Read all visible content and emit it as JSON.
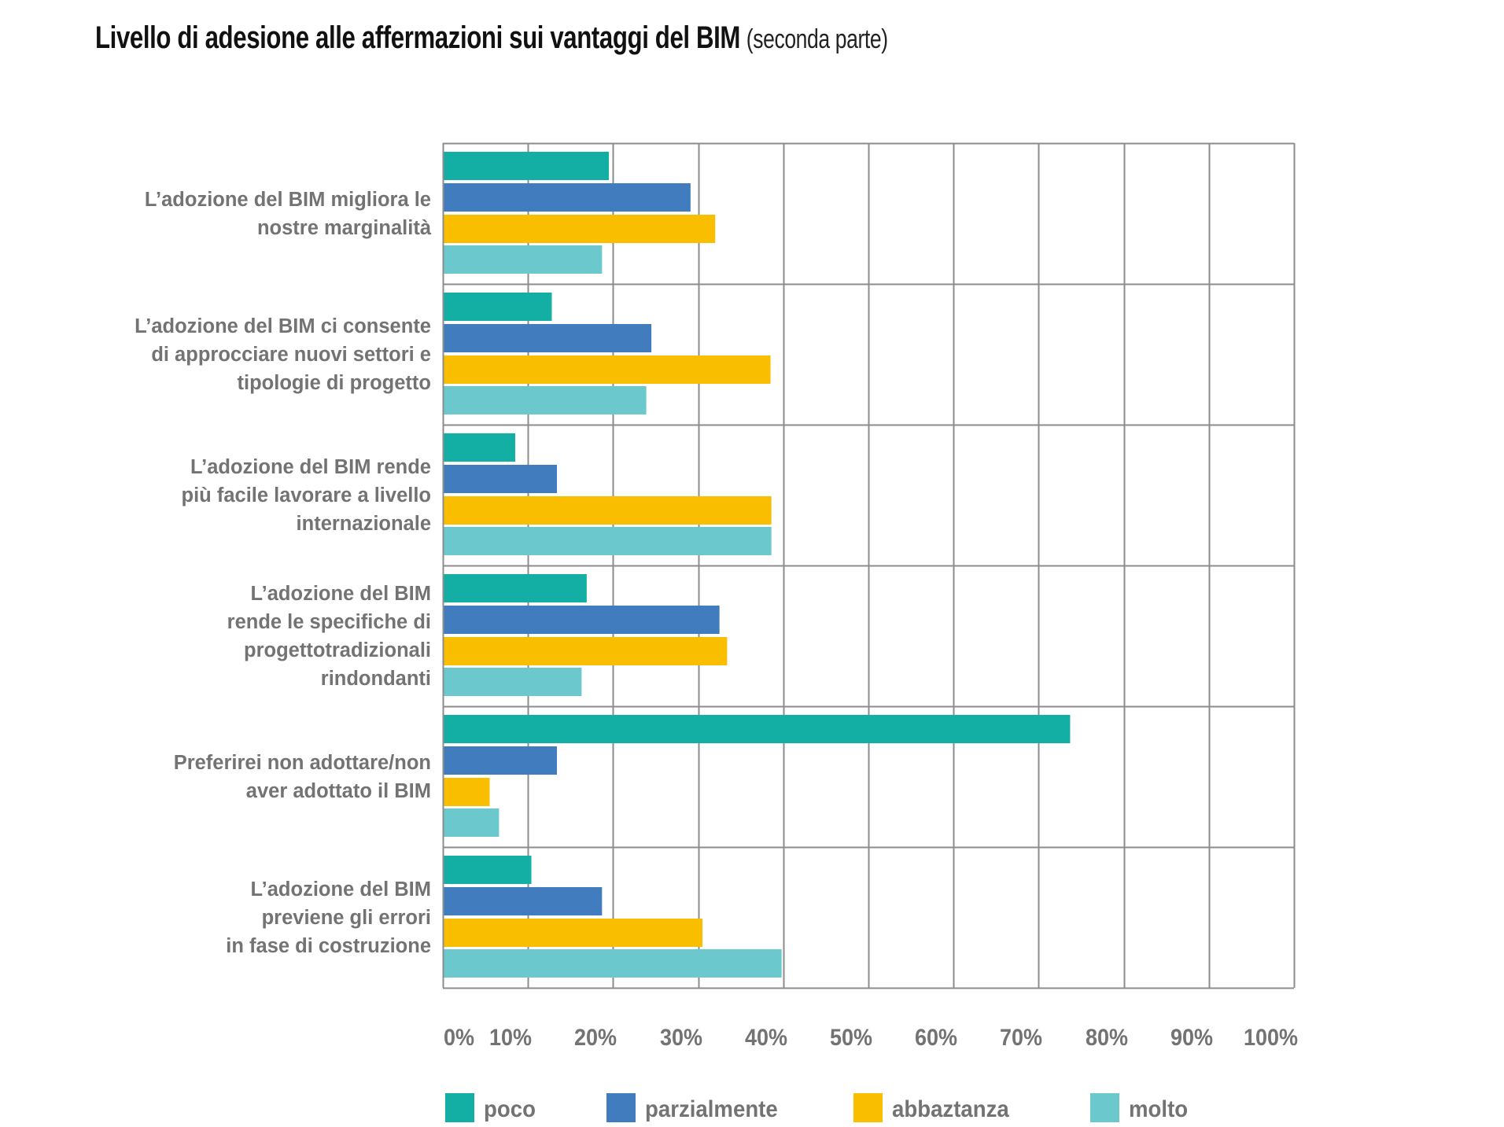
{
  "title": {
    "main": "Livello di adesione alle affermazioni  sui vantaggi del BIM",
    "sub": "(seconda parte)"
  },
  "chart_data": {
    "type": "bar",
    "orientation": "horizontal",
    "title": "Livello di adesione alle affermazioni  sui vantaggi del BIM (seconda parte)",
    "xlabel": "",
    "ylabel": "",
    "xlim": [
      0,
      100
    ],
    "value_unit": "%",
    "grid": true,
    "legend_position": "bottom",
    "x_ticks": [
      "0%",
      "10%",
      "20%",
      "30%",
      "40%",
      "50%",
      "60%",
      "70%",
      "80%",
      "90%",
      "100%"
    ],
    "categories": [
      "L’adozione del BIM migliora le\nnostre marginalità",
      "L’adozione del BIM ci consente\ndi approcciare nuovi settori e\ntipologie di progetto",
      "L’adozione del BIM rende\npiù facile lavorare a livello\ninternazionale",
      "L’adozione del BIM\nrende le specifiche di\nprogettotradizionali\nrindondanti",
      "Preferirei non adottare/non\naver adottato il BIM",
      "L’adozione del BIM\npreviene gli errori\nin fase di costruzione"
    ],
    "series": [
      {
        "name": "poco",
        "color": "#14AFA4",
        "values": [
          19.5,
          12.8,
          8.5,
          16.9,
          73.7,
          10.4
        ]
      },
      {
        "name": "parzialmente",
        "color": "#417CBE",
        "values": [
          29.1,
          24.5,
          13.4,
          32.5,
          13.4,
          18.7
        ]
      },
      {
        "name": "abbaztanza",
        "color": "#F9BE00",
        "values": [
          32.0,
          38.5,
          38.6,
          33.4,
          5.5,
          30.5
        ]
      },
      {
        "name": "molto",
        "color": "#6BC8CC",
        "values": [
          18.7,
          23.9,
          38.6,
          16.3,
          6.6,
          39.8
        ]
      }
    ],
    "grid_color": "#8C8C8C",
    "label_color": "#737373"
  }
}
